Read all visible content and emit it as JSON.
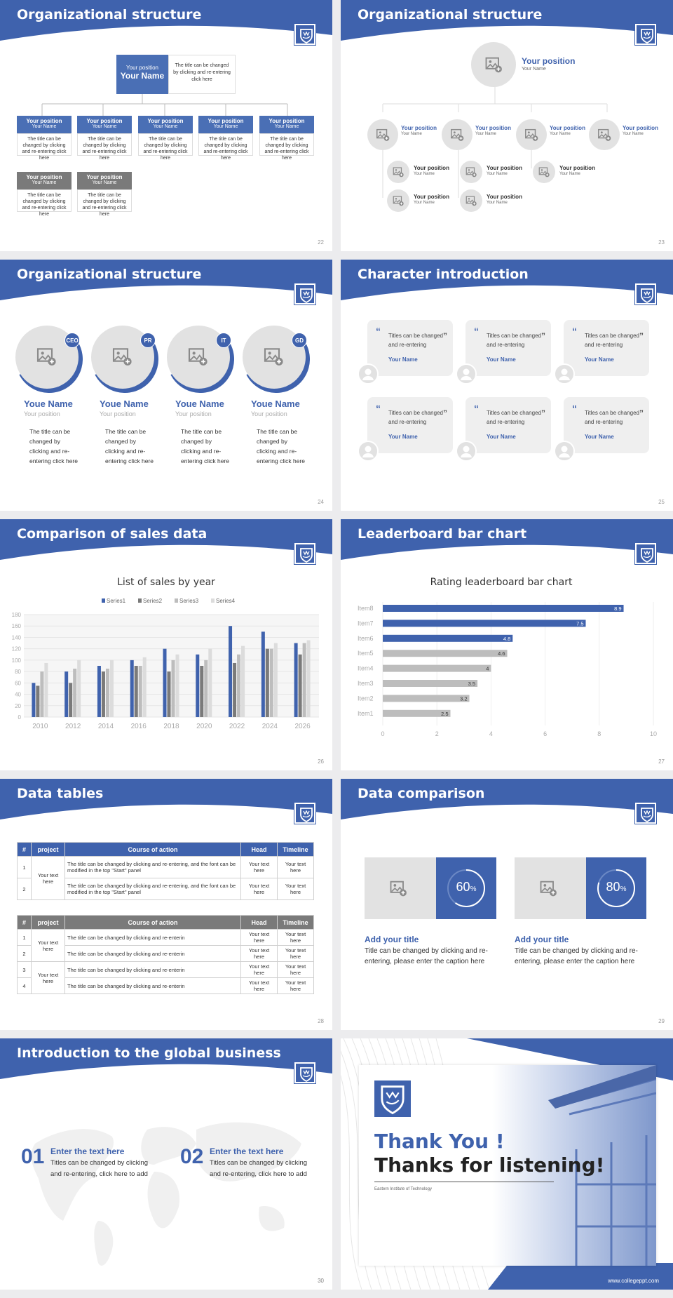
{
  "colors": {
    "accent": "#3f62ad",
    "grey": "#7a7a7a",
    "light": "#e2e2e2"
  },
  "icons": {
    "logo": "shield-logo-icon",
    "image": "image-placeholder-icon",
    "person": "person-icon",
    "quote": "quote-icon"
  },
  "s22": {
    "title": "Organizational structure",
    "num": "22",
    "top_pos": "Your position",
    "top_name": "Your Name",
    "top_desc": "The title can be changed by clicking and re-entering click here",
    "cards": [
      {
        "pos": "Your position",
        "name": "Your Name",
        "desc": "The title can be changed by clicking and re-entering click here"
      }
    ],
    "row1": [
      "Your position",
      "Your position",
      "Your position",
      "Your position",
      "Your position"
    ],
    "name": "Your Name",
    "desc": "The title can be changed by clicking and re-entering click here"
  },
  "s23": {
    "title": "Organizational structure",
    "num": "23",
    "top_pos": "Your position",
    "top_name": "Your Name",
    "pos": "Your position",
    "name": "Your Name"
  },
  "s24": {
    "title": "Organizational structure",
    "num": "24",
    "people": [
      {
        "tag": "CEO",
        "name": "Youe Name",
        "pos": "Your position",
        "desc": "The title can be changed by clicking and re-entering click here"
      },
      {
        "tag": "PR",
        "name": "Youe Name",
        "pos": "Your position",
        "desc": "The title can be changed by clicking and re-entering click here"
      },
      {
        "tag": "IT",
        "name": "Youe Name",
        "pos": "Your position",
        "desc": "The title can be changed by clicking and re-entering click here"
      },
      {
        "tag": "GD",
        "name": "Youe Name",
        "pos": "Your position",
        "desc": "The title can be changed by clicking and re-entering click here"
      }
    ]
  },
  "s25": {
    "title": "Character introduction",
    "num": "25",
    "quote": "Titles can be changed and re-entering",
    "name": "Your Name"
  },
  "s26": {
    "title": "Comparison of sales data",
    "num": "26"
  },
  "s27": {
    "title": "Leaderboard bar chart",
    "num": "27"
  },
  "chart_data": [
    {
      "type": "bar",
      "title": "List of sales by year",
      "categories": [
        "2010",
        "2012",
        "2014",
        "2016",
        "2018",
        "2020",
        "2022",
        "2024",
        "2026"
      ],
      "ylim": [
        0,
        180
      ],
      "yticks": [
        0,
        20,
        40,
        60,
        80,
        100,
        120,
        140,
        160,
        180
      ],
      "legend": "top",
      "series": [
        {
          "name": "Series1",
          "color": "#3f62ad",
          "values": [
            60,
            80,
            90,
            100,
            120,
            110,
            160,
            150,
            130
          ]
        },
        {
          "name": "Series2",
          "color": "#7a7a7a",
          "values": [
            55,
            60,
            80,
            90,
            80,
            90,
            95,
            120,
            110
          ]
        },
        {
          "name": "Series3",
          "color": "#bdbdbd",
          "values": [
            80,
            85,
            85,
            90,
            100,
            100,
            110,
            120,
            130
          ]
        },
        {
          "name": "Series4",
          "color": "#dcdcdc",
          "values": [
            95,
            100,
            100,
            105,
            110,
            120,
            125,
            130,
            135
          ]
        }
      ]
    },
    {
      "type": "bar",
      "orientation": "horizontal",
      "title": "Rating leaderboard bar chart",
      "categories": [
        "Item8",
        "Item7",
        "Item6",
        "Item5",
        "Item4",
        "Item3",
        "Item2",
        "Item1"
      ],
      "values": [
        8.9,
        7.5,
        4.8,
        4.6,
        4,
        3.5,
        3.2,
        2.5
      ],
      "xlim": [
        0,
        10
      ],
      "xticks": [
        0,
        2,
        4,
        6,
        8,
        10
      ]
    }
  ],
  "s28": {
    "title": "Data tables",
    "num": "28",
    "headers": [
      "#",
      "project",
      "Course of action",
      "Head",
      "Timeline"
    ],
    "t1": {
      "project": "Your text here",
      "rows": [
        {
          "n": "1",
          "action": "The title can be changed by clicking and re-entering, and the font can be modified in the top \"Start\" panel",
          "head": "Your text here",
          "time": "Your text here"
        },
        {
          "n": "2",
          "action": "The title can be changed by clicking and re-entering, and the font can be modified in the top \"Start\" panel",
          "head": "Your text here",
          "time": "Your text here"
        }
      ]
    },
    "t2": {
      "rows": [
        {
          "n": "1",
          "project": "Your text here",
          "action": "The title can be changed by clicking and re-enterin",
          "head": "Your text here",
          "time": "Your text here"
        },
        {
          "n": "2",
          "project": "",
          "action": "The title can be changed by clicking and re-enterin",
          "head": "Your text here",
          "time": "Your text here"
        },
        {
          "n": "3",
          "project": "Your text here",
          "action": "The title can be changed by clicking and re-enterin",
          "head": "Your text here",
          "time": "Your text here"
        },
        {
          "n": "4",
          "project": "",
          "action": "The title can be changed by clicking and re-enterin",
          "head": "Your text here",
          "time": "Your text here"
        }
      ]
    }
  },
  "s29": {
    "title": "Data comparison",
    "num": "29",
    "items": [
      {
        "value": 60,
        "label": "60",
        "unit": "%",
        "heading": "Add your title",
        "text": "Title can be changed by clicking and re-entering, please enter the caption here"
      },
      {
        "value": 80,
        "label": "80",
        "unit": "%",
        "heading": "Add your title",
        "text": "Title can be changed by clicking and re-entering, please enter the caption here"
      }
    ]
  },
  "s30": {
    "title": "Introduction to the global business",
    "num": "30",
    "items": [
      {
        "n": "01",
        "heading": "Enter the text here",
        "text": "Titles can be changed by clicking and re-entering, click here to add"
      },
      {
        "n": "02",
        "heading": "Enter the text here",
        "text": "Titles can be changed by clicking and re-entering, click here to add"
      }
    ]
  },
  "s31": {
    "thank": "Thank You !",
    "thanks": "Thanks for listening!",
    "org": "Eastern Institute of Technology",
    "url": "www.collegeppt.com"
  }
}
